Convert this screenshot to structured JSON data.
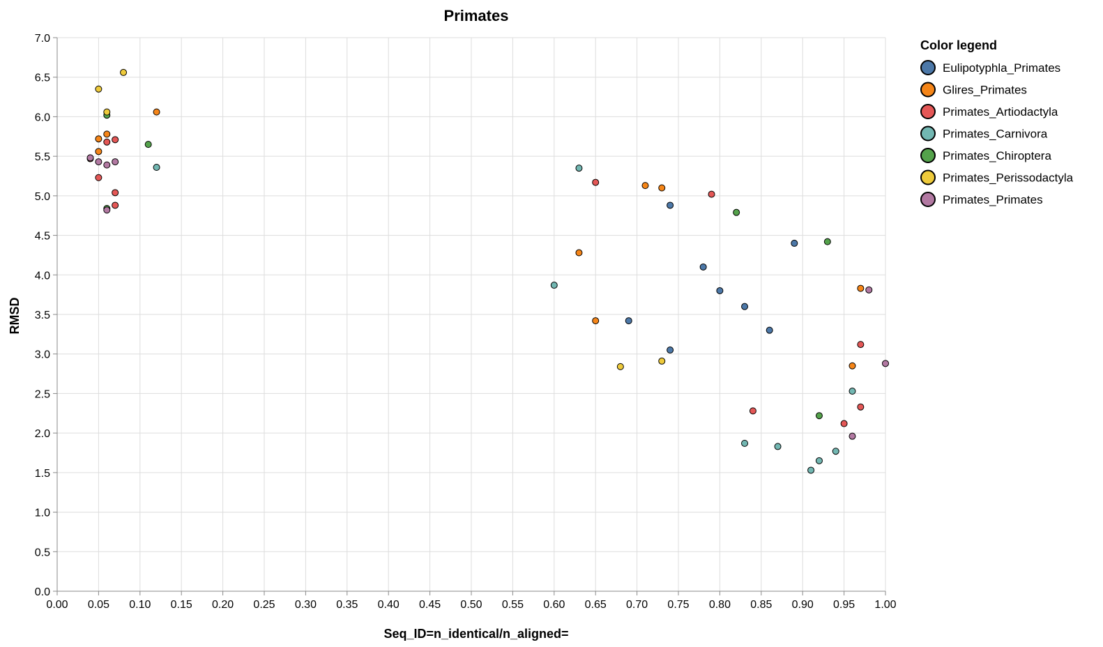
{
  "chart_data": {
    "type": "scatter",
    "title": "Primates",
    "xlabel": "Seq_ID=n_identical/n_aligned=",
    "ylabel": "RMSD",
    "xlim": [
      0.0,
      1.0
    ],
    "ylim": [
      0.0,
      7.0
    ],
    "x_ticks": [
      "0.00",
      "0.05",
      "0.10",
      "0.15",
      "0.20",
      "0.25",
      "0.30",
      "0.35",
      "0.40",
      "0.45",
      "0.50",
      "0.55",
      "0.60",
      "0.65",
      "0.70",
      "0.75",
      "0.80",
      "0.85",
      "0.90",
      "0.95",
      "1.00"
    ],
    "y_ticks": [
      "0.0",
      "0.5",
      "1.0",
      "1.5",
      "2.0",
      "2.5",
      "3.0",
      "3.5",
      "4.0",
      "4.5",
      "5.0",
      "5.5",
      "6.0",
      "6.5",
      "7.0"
    ],
    "grid": true,
    "legend": {
      "title": "Color legend",
      "placement": "right"
    },
    "series": [
      {
        "name": "Eulipotyphla_Primates",
        "color": "#4c78a8",
        "points": [
          [
            0.74,
            4.88
          ],
          [
            0.89,
            4.4
          ],
          [
            0.69,
            3.42
          ],
          [
            0.74,
            3.05
          ],
          [
            0.8,
            3.8
          ],
          [
            0.83,
            3.6
          ],
          [
            0.86,
            3.3
          ],
          [
            0.78,
            4.1
          ]
        ]
      },
      {
        "name": "Glires_Primates",
        "color": "#f58518",
        "points": [
          [
            0.04,
            5.47
          ],
          [
            0.05,
            5.72
          ],
          [
            0.05,
            5.56
          ],
          [
            0.06,
            5.78
          ],
          [
            0.12,
            6.06
          ],
          [
            0.71,
            5.13
          ],
          [
            0.73,
            5.1
          ],
          [
            0.97,
            3.83
          ],
          [
            0.96,
            2.85
          ],
          [
            0.65,
            3.42
          ],
          [
            0.63,
            4.28
          ]
        ]
      },
      {
        "name": "Primates_Artiodactyla",
        "color": "#e45756",
        "points": [
          [
            0.05,
            5.23
          ],
          [
            0.06,
            5.68
          ],
          [
            0.07,
            5.71
          ],
          [
            0.07,
            5.04
          ],
          [
            0.07,
            4.88
          ],
          [
            0.65,
            5.17
          ],
          [
            0.79,
            5.02
          ],
          [
            0.97,
            2.33
          ],
          [
            0.97,
            3.12
          ],
          [
            0.95,
            2.12
          ],
          [
            0.84,
            2.28
          ]
        ]
      },
      {
        "name": "Primates_Carnivora",
        "color": "#72b7b2",
        "points": [
          [
            0.12,
            5.36
          ],
          [
            0.63,
            5.35
          ],
          [
            0.6,
            3.87
          ],
          [
            0.83,
            1.87
          ],
          [
            0.87,
            1.83
          ],
          [
            0.91,
            1.53
          ],
          [
            0.92,
            1.65
          ],
          [
            0.94,
            1.77
          ],
          [
            0.96,
            2.53
          ]
        ]
      },
      {
        "name": "Primates_Chiroptera",
        "color": "#54a24b",
        "points": [
          [
            0.06,
            6.02
          ],
          [
            0.11,
            5.65
          ],
          [
            0.06,
            4.84
          ],
          [
            0.82,
            4.79
          ],
          [
            0.93,
            4.42
          ],
          [
            0.92,
            2.22
          ]
        ]
      },
      {
        "name": "Primates_Perissodactyla",
        "color": "#eeca3b",
        "points": [
          [
            0.08,
            6.56
          ],
          [
            0.05,
            6.35
          ],
          [
            0.06,
            6.06
          ],
          [
            0.68,
            2.84
          ],
          [
            0.73,
            2.91
          ]
        ]
      },
      {
        "name": "Primates_Primates",
        "color": "#b279a2",
        "points": [
          [
            0.04,
            5.48
          ],
          [
            0.05,
            5.43
          ],
          [
            0.07,
            5.43
          ],
          [
            0.06,
            5.39
          ],
          [
            0.06,
            4.82
          ],
          [
            1.0,
            2.88
          ],
          [
            0.96,
            1.96
          ],
          [
            0.98,
            3.81
          ]
        ]
      }
    ]
  }
}
